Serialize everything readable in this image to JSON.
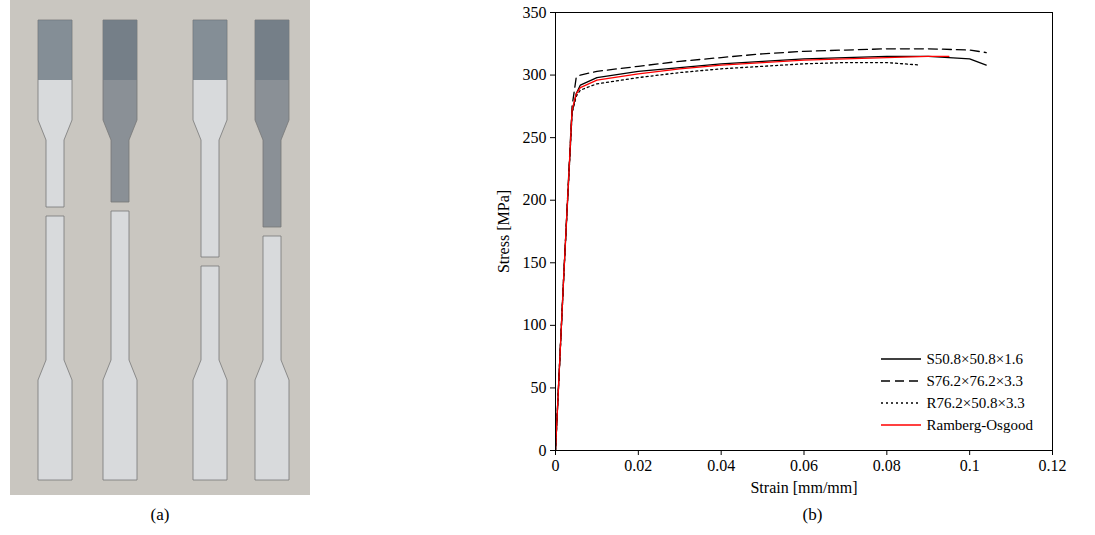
{
  "photo": {
    "panel_label": "(a)"
  },
  "chart_data": {
    "type": "line",
    "panel_label": "(b)",
    "x_label": "Strain [mm/mm]",
    "y_label": "Stress [MPa]",
    "xlim": [
      0,
      0.12
    ],
    "xticks": [
      0,
      0.02,
      0.04,
      0.06,
      0.08,
      0.1,
      0.12
    ],
    "ylim": [
      0,
      350
    ],
    "yticks": [
      0,
      50,
      100,
      150,
      200,
      250,
      300,
      350
    ],
    "grid": false,
    "legend": "lower right",
    "series": [
      {
        "name": "S50.8×50.8×1.6",
        "color": "#000000",
        "line_style": "solid",
        "x": [
          0,
          0.002,
          0.004,
          0.005,
          0.006,
          0.01,
          0.02,
          0.03,
          0.04,
          0.05,
          0.06,
          0.07,
          0.08,
          0.09,
          0.1,
          0.104
        ],
        "values": [
          0,
          140,
          270,
          285,
          292,
          298,
          303,
          306,
          309,
          311,
          313,
          314,
          315,
          315,
          313,
          308
        ]
      },
      {
        "name": "S76.2×76.2×3.3",
        "color": "#000000",
        "line_style": "dashed",
        "x": [
          0,
          0.002,
          0.004,
          0.005,
          0.006,
          0.01,
          0.02,
          0.03,
          0.04,
          0.05,
          0.06,
          0.07,
          0.08,
          0.09,
          0.1,
          0.104
        ],
        "values": [
          0,
          140,
          275,
          298,
          300,
          303,
          307,
          311,
          314,
          317,
          319,
          320,
          321,
          321,
          320,
          318
        ]
      },
      {
        "name": "R76.2×50.8×3.3",
        "color": "#000000",
        "line_style": "dotted",
        "x": [
          0,
          0.002,
          0.004,
          0.005,
          0.006,
          0.01,
          0.02,
          0.03,
          0.04,
          0.05,
          0.06,
          0.07,
          0.08,
          0.088
        ],
        "values": [
          0,
          140,
          270,
          283,
          288,
          293,
          298,
          302,
          305,
          307,
          309,
          310,
          310,
          308
        ]
      },
      {
        "name": "Ramberg-Osgood",
        "color": "#ff0000",
        "line_style": "solid",
        "x": [
          0,
          0.002,
          0.004,
          0.005,
          0.006,
          0.01,
          0.02,
          0.03,
          0.04,
          0.05,
          0.06,
          0.07,
          0.08,
          0.09,
          0.095
        ],
        "values": [
          0,
          140,
          272,
          285,
          290,
          296,
          301,
          305,
          308,
          310,
          312,
          313,
          314,
          315,
          315
        ]
      }
    ]
  }
}
